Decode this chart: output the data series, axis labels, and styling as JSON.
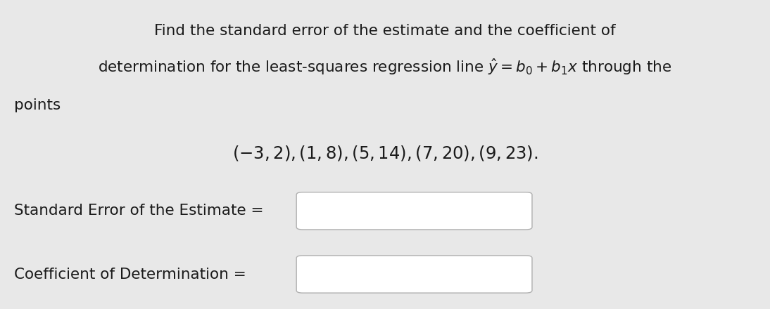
{
  "bg_color": "#e8e8e8",
  "text_color": "#1a1a1a",
  "title_line1": "Find the standard error of the estimate and the coefficient of",
  "title_line2": "determination for the least-squares regression line $\\hat{y} = b_0 + b_1x$ through the",
  "title_line3": "points",
  "points_str": "$(-3, 2), (1, 8), (5, 14), (7, 20), (9, 23).$",
  "label1": "Standard Error of the Estimate =",
  "label2": "Coefficient of Determination =",
  "font_size_main": 15.5,
  "font_size_points": 17.5,
  "font_size_labels": 15.5
}
